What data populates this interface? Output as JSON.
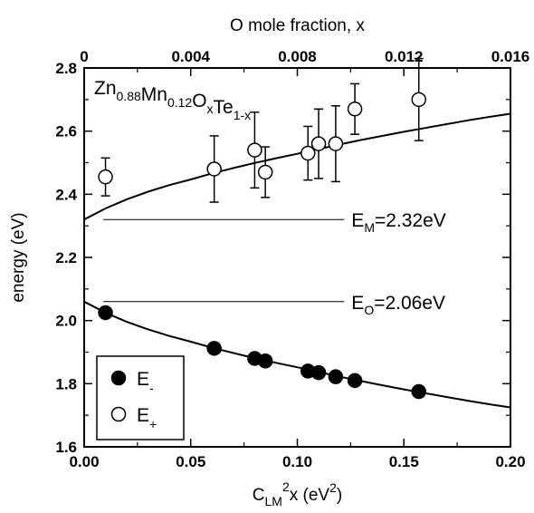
{
  "chart_data": {
    "type": "scatter",
    "title": "",
    "x_axis_bottom": {
      "label_main": "C",
      "label_sub": "LM",
      "label_sup": "2",
      "label_rest": "x (eV",
      "label_unit_sup": "2",
      "label_close": ")",
      "range": [
        0.0,
        0.2
      ],
      "ticks": [
        0.0,
        0.05,
        0.1,
        0.15,
        0.2
      ],
      "tick_labels": [
        "0.00",
        "0.05",
        "0.10",
        "0.15",
        "0.20"
      ]
    },
    "x_axis_top": {
      "label": "O mole fraction, x",
      "range": [
        0,
        0.016
      ],
      "ticks": [
        0,
        0.004,
        0.008,
        0.012,
        0.016
      ],
      "tick_labels": [
        "0",
        "0.004",
        "0.008",
        "0.012",
        "0.016"
      ]
    },
    "y_axis": {
      "label": "energy (eV)",
      "range": [
        1.6,
        2.8
      ],
      "ticks": [
        1.6,
        1.8,
        2.0,
        2.2,
        2.4,
        2.6,
        2.8
      ],
      "tick_labels": [
        "1.6",
        "1.8",
        "2.0",
        "2.2",
        "2.4",
        "2.6",
        "2.8"
      ]
    },
    "grid": false,
    "composition_label": {
      "parts": [
        {
          "t": "Zn",
          "s": "0.88"
        },
        {
          "t": "Mn",
          "s": "0.12"
        },
        {
          "t": "O",
          "s": "x"
        },
        {
          "t": "Te",
          "s": "1-x"
        }
      ]
    },
    "reference_lines": [
      {
        "y": 2.32,
        "x_range": [
          0.009,
          0.122
        ],
        "label_main": "E",
        "label_sub": "M",
        "label_rest": "=2.32eV"
      },
      {
        "y": 2.06,
        "x_range": [
          0.009,
          0.122
        ],
        "label_main": "E",
        "label_sub": "O",
        "label_rest": "=2.06eV"
      }
    ],
    "series": [
      {
        "name": "E-",
        "legend_main": "E",
        "legend_sub": "-",
        "marker": "filled-circle",
        "points": [
          {
            "x": 0.01,
            "y": 2.025
          },
          {
            "x": 0.061,
            "y": 1.912
          },
          {
            "x": 0.08,
            "y": 1.88
          },
          {
            "x": 0.085,
            "y": 1.872
          },
          {
            "x": 0.105,
            "y": 1.84
          },
          {
            "x": 0.11,
            "y": 1.835
          },
          {
            "x": 0.118,
            "y": 1.822
          },
          {
            "x": 0.127,
            "y": 1.81
          },
          {
            "x": 0.157,
            "y": 1.775
          }
        ],
        "fit_curve": [
          {
            "x": 0.0,
            "y": 2.06
          },
          {
            "x": 0.01,
            "y": 2.025
          },
          {
            "x": 0.02,
            "y": 1.996
          },
          {
            "x": 0.03,
            "y": 1.972
          },
          {
            "x": 0.04,
            "y": 1.951
          },
          {
            "x": 0.05,
            "y": 1.933
          },
          {
            "x": 0.06,
            "y": 1.914
          },
          {
            "x": 0.07,
            "y": 1.897
          },
          {
            "x": 0.08,
            "y": 1.881
          },
          {
            "x": 0.09,
            "y": 1.866
          },
          {
            "x": 0.1,
            "y": 1.852
          },
          {
            "x": 0.11,
            "y": 1.837
          },
          {
            "x": 0.12,
            "y": 1.822
          },
          {
            "x": 0.13,
            "y": 1.808
          },
          {
            "x": 0.14,
            "y": 1.795
          },
          {
            "x": 0.15,
            "y": 1.782
          },
          {
            "x": 0.16,
            "y": 1.77
          },
          {
            "x": 0.17,
            "y": 1.758
          },
          {
            "x": 0.18,
            "y": 1.746
          },
          {
            "x": 0.19,
            "y": 1.735
          },
          {
            "x": 0.2,
            "y": 1.725
          }
        ]
      },
      {
        "name": "E+",
        "legend_main": "E",
        "legend_sub": "+",
        "marker": "open-circle",
        "points": [
          {
            "x": 0.01,
            "y": 2.455,
            "err": 0.06
          },
          {
            "x": 0.061,
            "y": 2.48,
            "err": 0.105
          },
          {
            "x": 0.08,
            "y": 2.54,
            "err": 0.12
          },
          {
            "x": 0.085,
            "y": 2.47,
            "err": 0.08
          },
          {
            "x": 0.105,
            "y": 2.53,
            "err": 0.085
          },
          {
            "x": 0.11,
            "y": 2.56,
            "err": 0.11
          },
          {
            "x": 0.118,
            "y": 2.56,
            "err": 0.12
          },
          {
            "x": 0.127,
            "y": 2.67,
            "err": 0.08
          },
          {
            "x": 0.157,
            "y": 2.7,
            "err": 0.13
          }
        ],
        "fit_curve": [
          {
            "x": 0.0,
            "y": 2.32
          },
          {
            "x": 0.01,
            "y": 2.355
          },
          {
            "x": 0.02,
            "y": 2.384
          },
          {
            "x": 0.03,
            "y": 2.408
          },
          {
            "x": 0.04,
            "y": 2.429
          },
          {
            "x": 0.05,
            "y": 2.447
          },
          {
            "x": 0.06,
            "y": 2.466
          },
          {
            "x": 0.07,
            "y": 2.483
          },
          {
            "x": 0.08,
            "y": 2.499
          },
          {
            "x": 0.09,
            "y": 2.514
          },
          {
            "x": 0.1,
            "y": 2.528
          },
          {
            "x": 0.11,
            "y": 2.543
          },
          {
            "x": 0.12,
            "y": 2.558
          },
          {
            "x": 0.13,
            "y": 2.572
          },
          {
            "x": 0.14,
            "y": 2.585
          },
          {
            "x": 0.15,
            "y": 2.598
          },
          {
            "x": 0.16,
            "y": 2.61
          },
          {
            "x": 0.17,
            "y": 2.622
          },
          {
            "x": 0.18,
            "y": 2.634
          },
          {
            "x": 0.19,
            "y": 2.645
          },
          {
            "x": 0.2,
            "y": 2.655
          }
        ]
      }
    ],
    "legend_placement": "bottom-left"
  }
}
